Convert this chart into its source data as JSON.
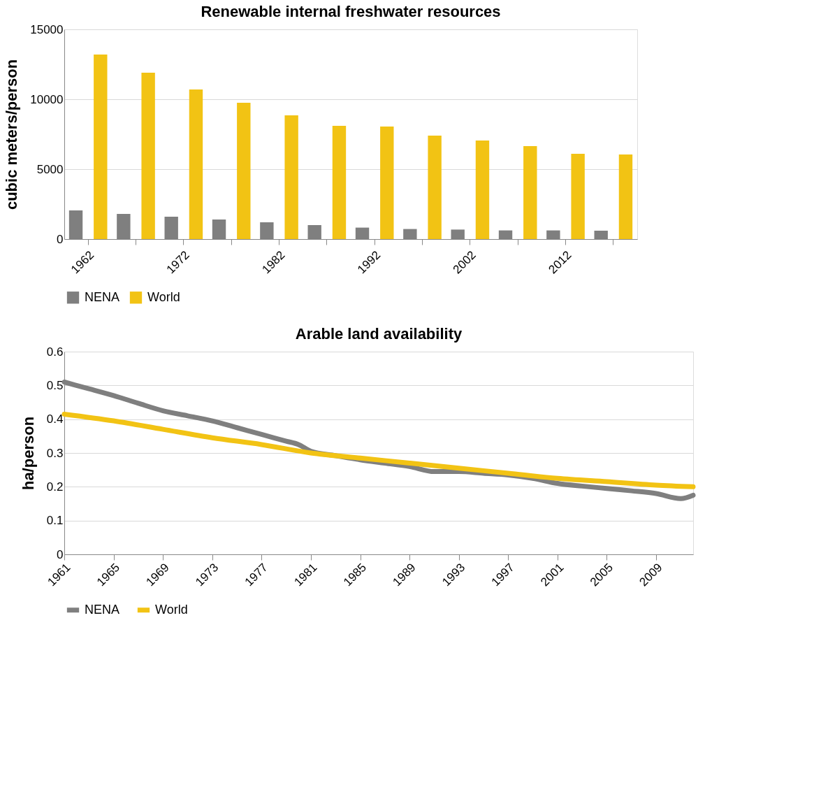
{
  "chart_data": [
    {
      "type": "bar",
      "title": "Renewable internal freshwater resources",
      "ylabel": "cubic meters/person",
      "categories": [
        "1962",
        null,
        "1972",
        null,
        "1982",
        null,
        "1992",
        null,
        "2002",
        null,
        "2012",
        null
      ],
      "series": [
        {
          "name": "NENA",
          "color": "#7f7f7f",
          "values": [
            2050,
            1800,
            1600,
            1400,
            1200,
            1000,
            820,
            720,
            680,
            620,
            620,
            600
          ]
        },
        {
          "name": "World",
          "color": "#f2c314",
          "values": [
            13200,
            11900,
            10700,
            9750,
            8850,
            8100,
            8050,
            7400,
            7050,
            6650,
            6100,
            6050
          ]
        }
      ],
      "ylim": [
        0,
        15000
      ],
      "yticks": [
        0,
        5000,
        10000,
        15000
      ],
      "grid": "y",
      "legend": "bottom"
    },
    {
      "type": "line",
      "title": "Arable land availability",
      "ylabel": "ha/person",
      "xlim": [
        1961,
        2012
      ],
      "xticks": [
        1961,
        1965,
        1969,
        1973,
        1977,
        1981,
        1985,
        1989,
        1993,
        1997,
        2001,
        2005,
        2009
      ],
      "series": [
        {
          "name": "NENA",
          "color": "#7f7f7f",
          "x": [
            1961,
            1963,
            1965,
            1967,
            1969,
            1971,
            1973,
            1975,
            1977,
            1979,
            1980,
            1981,
            1983,
            1985,
            1987,
            1989,
            1991,
            1993,
            1995,
            1997,
            1999,
            2001,
            2003,
            2005,
            2007,
            2009,
            2011,
            2012
          ],
          "values": [
            0.51,
            0.49,
            0.47,
            0.447,
            0.425,
            0.41,
            0.395,
            0.375,
            0.355,
            0.335,
            0.325,
            0.305,
            0.292,
            0.28,
            0.27,
            0.26,
            0.245,
            0.245,
            0.24,
            0.235,
            0.225,
            0.21,
            0.202,
            0.195,
            0.188,
            0.18,
            0.165,
            0.175
          ]
        },
        {
          "name": "World",
          "color": "#f2c314",
          "x": [
            1961,
            1965,
            1969,
            1973,
            1977,
            1981,
            1985,
            1989,
            1993,
            1997,
            2001,
            2005,
            2009,
            2012
          ],
          "values": [
            0.415,
            0.395,
            0.37,
            0.345,
            0.325,
            0.3,
            0.285,
            0.27,
            0.255,
            0.24,
            0.225,
            0.215,
            0.205,
            0.2
          ]
        }
      ],
      "ylim": [
        0,
        0.6
      ],
      "yticks": [
        0,
        0.1,
        0.2,
        0.3,
        0.4,
        0.5,
        0.6
      ],
      "grid": "y",
      "legend": "bottom"
    }
  ]
}
